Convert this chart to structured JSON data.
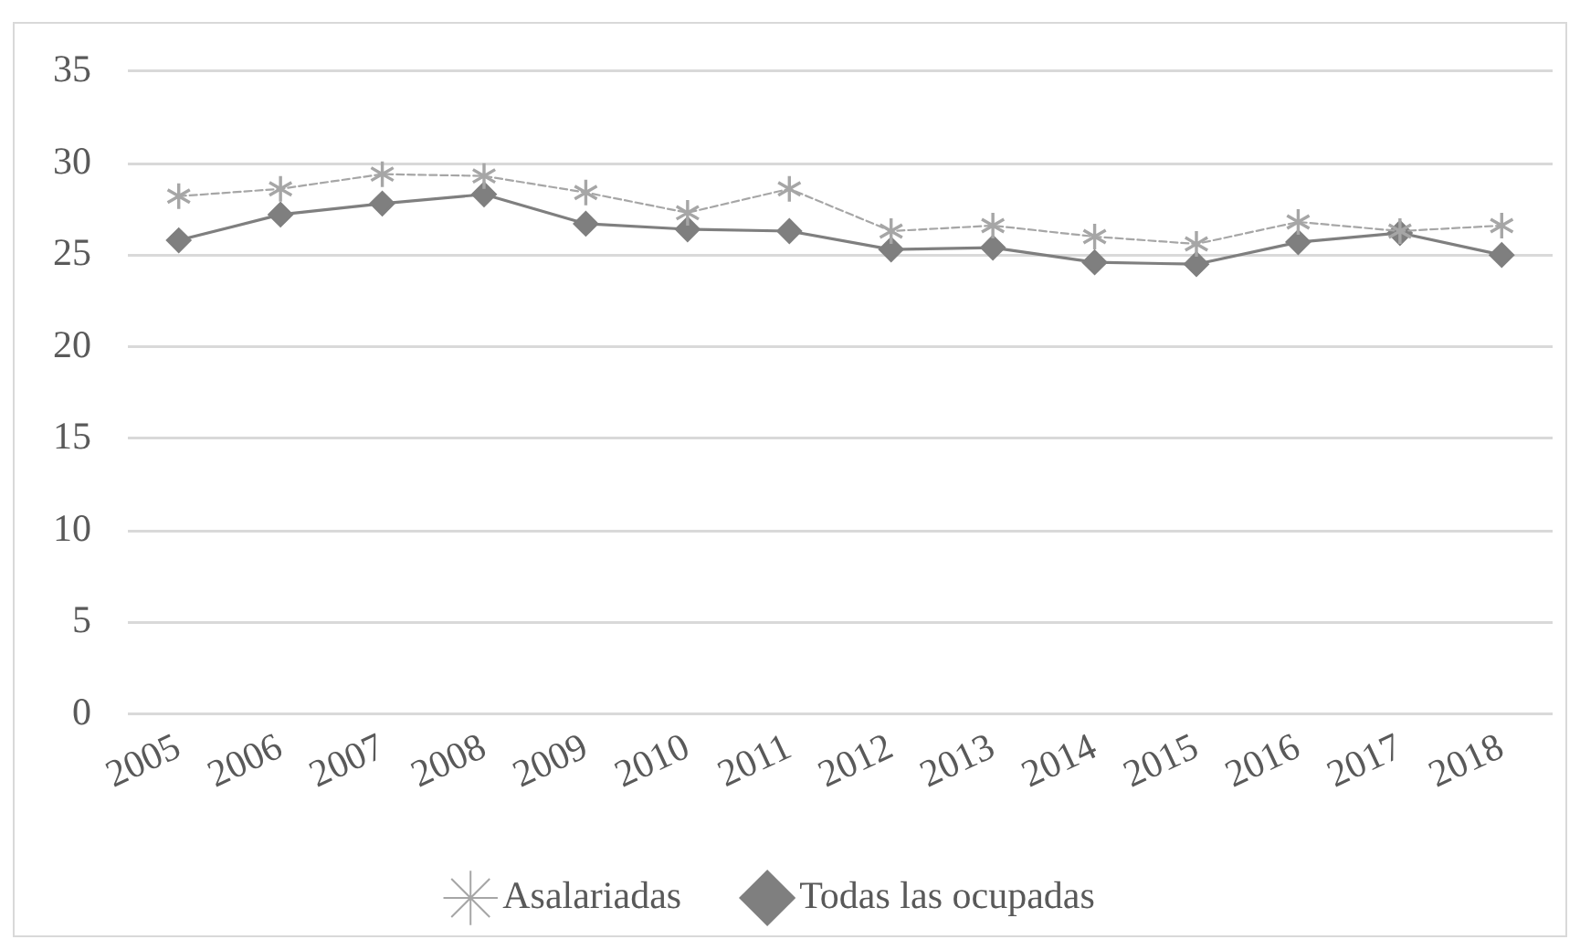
{
  "chart_data": {
    "type": "line",
    "categories": [
      "2005",
      "2006",
      "2007",
      "2008",
      "2009",
      "2010",
      "2011",
      "2012",
      "2013",
      "2014",
      "2015",
      "2016",
      "2017",
      "2018"
    ],
    "series": [
      {
        "name": "Asalariadas",
        "color": "#a6a6a6",
        "marker": "star",
        "line_style": "dashed",
        "values": [
          28.2,
          28.6,
          29.4,
          29.3,
          28.4,
          27.3,
          28.6,
          26.3,
          26.6,
          26.0,
          25.6,
          26.8,
          26.3,
          26.6
        ]
      },
      {
        "name": "Todas las ocupadas",
        "color": "#7f7f7f",
        "marker": "diamond",
        "line_style": "solid",
        "values": [
          25.8,
          27.2,
          27.8,
          28.3,
          26.7,
          26.4,
          26.3,
          25.3,
          25.4,
          24.6,
          24.5,
          25.7,
          26.2,
          25.0
        ]
      }
    ],
    "ylim": [
      0,
      35
    ],
    "yticks": [
      0,
      5,
      10,
      15,
      20,
      25,
      30,
      35
    ],
    "grid": "y",
    "legend": "bottom"
  }
}
